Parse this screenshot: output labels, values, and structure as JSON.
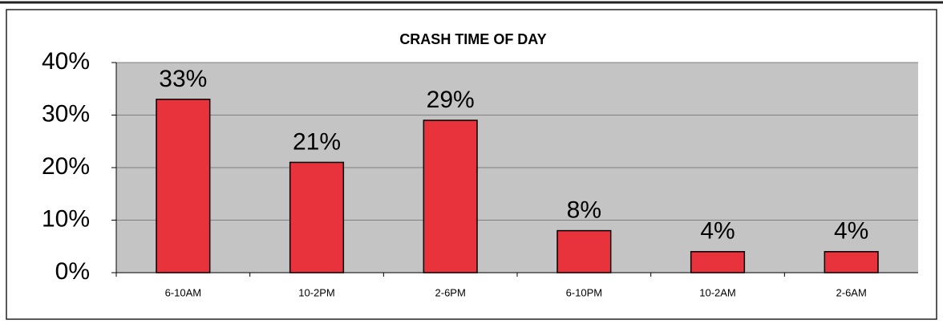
{
  "chart_data": {
    "type": "bar",
    "title": "CRASH TIME OF DAY",
    "categories": [
      "6-10AM",
      "10-2PM",
      "2-6PM",
      "6-10PM",
      "10-2AM",
      "2-6AM"
    ],
    "values": [
      33,
      21,
      29,
      8,
      4,
      4
    ],
    "value_labels": [
      "33%",
      "21%",
      "29%",
      "8%",
      "4%",
      "4%"
    ],
    "color": "#e8323c",
    "ylim": [
      0,
      40
    ],
    "yticks": [
      {
        "value": 0,
        "label": "0%"
      },
      {
        "value": 10,
        "label": "10%"
      },
      {
        "value": 20,
        "label": "20%"
      },
      {
        "value": 30,
        "label": "30%"
      },
      {
        "value": 40,
        "label": "40%"
      }
    ],
    "grid": true
  }
}
